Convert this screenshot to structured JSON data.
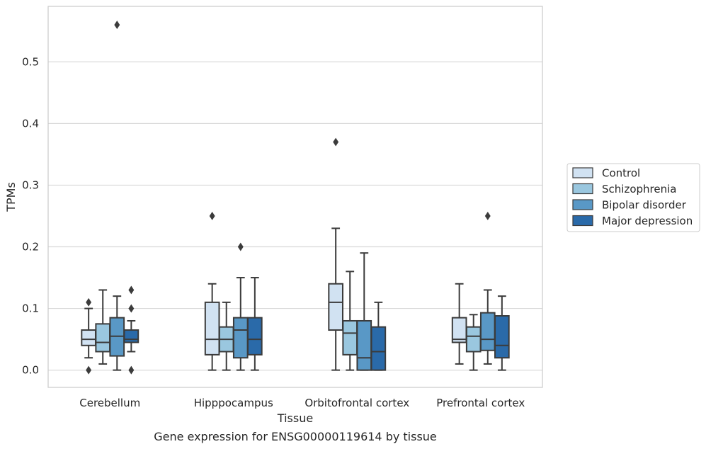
{
  "chart_data": {
    "type": "boxplot",
    "title": "",
    "xlabel": "Tissue",
    "ylabel": "TPMs",
    "caption": "Gene expression for ENSG00000119614 by tissue",
    "ylim": [
      -0.028,
      0.59
    ],
    "yticks": [
      "0.0",
      "0.1",
      "0.2",
      "0.3",
      "0.4",
      "0.5"
    ],
    "grid": "horizontal",
    "legend_position": "right",
    "categories": [
      "Cerebellum",
      "Hipppocampus",
      "Orbitofrontal cortex",
      "Prefrontal cortex"
    ],
    "series": [
      {
        "name": "Control",
        "color": "#d1e2f2",
        "boxes": [
          {
            "q1": 0.04,
            "median": 0.05,
            "q3": 0.065,
            "whisker_low": 0.02,
            "whisker_high": 0.1,
            "outliers": [
              0.11,
              0.0
            ]
          },
          {
            "q1": 0.025,
            "median": 0.05,
            "q3": 0.11,
            "whisker_low": 0.0,
            "whisker_high": 0.14,
            "outliers": [
              0.25
            ]
          },
          {
            "q1": 0.065,
            "median": 0.11,
            "q3": 0.14,
            "whisker_low": 0.0,
            "whisker_high": 0.23,
            "outliers": [
              0.37
            ]
          },
          {
            "q1": 0.045,
            "median": 0.05,
            "q3": 0.085,
            "whisker_low": 0.01,
            "whisker_high": 0.14,
            "outliers": []
          }
        ]
      },
      {
        "name": "Schizophrenia",
        "color": "#9ac7df",
        "boxes": [
          {
            "q1": 0.03,
            "median": 0.045,
            "q3": 0.075,
            "whisker_low": 0.01,
            "whisker_high": 0.13,
            "outliers": []
          },
          {
            "q1": 0.03,
            "median": 0.05,
            "q3": 0.07,
            "whisker_low": 0.0,
            "whisker_high": 0.11,
            "outliers": []
          },
          {
            "q1": 0.025,
            "median": 0.06,
            "q3": 0.08,
            "whisker_low": 0.0,
            "whisker_high": 0.16,
            "outliers": []
          },
          {
            "q1": 0.03,
            "median": 0.055,
            "q3": 0.07,
            "whisker_low": 0.0,
            "whisker_high": 0.09,
            "outliers": []
          }
        ]
      },
      {
        "name": "Bipolar disorder",
        "color": "#5998c6",
        "boxes": [
          {
            "q1": 0.023,
            "median": 0.055,
            "q3": 0.085,
            "whisker_low": 0.0,
            "whisker_high": 0.12,
            "outliers": [
              0.56
            ]
          },
          {
            "q1": 0.02,
            "median": 0.065,
            "q3": 0.085,
            "whisker_low": 0.0,
            "whisker_high": 0.15,
            "outliers": [
              0.2
            ]
          },
          {
            "q1": 0.0,
            "median": 0.02,
            "q3": 0.08,
            "whisker_low": 0.0,
            "whisker_high": 0.19,
            "outliers": []
          },
          {
            "q1": 0.032,
            "median": 0.05,
            "q3": 0.093,
            "whisker_low": 0.01,
            "whisker_high": 0.13,
            "outliers": [
              0.25
            ]
          }
        ]
      },
      {
        "name": "Major depression",
        "color": "#2a6aa9",
        "boxes": [
          {
            "q1": 0.045,
            "median": 0.05,
            "q3": 0.065,
            "whisker_low": 0.03,
            "whisker_high": 0.08,
            "outliers": [
              0.13,
              0.1,
              0.0
            ]
          },
          {
            "q1": 0.025,
            "median": 0.05,
            "q3": 0.085,
            "whisker_low": 0.0,
            "whisker_high": 0.15,
            "outliers": []
          },
          {
            "q1": 0.0,
            "median": 0.03,
            "q3": 0.07,
            "whisker_low": 0.0,
            "whisker_high": 0.11,
            "outliers": []
          },
          {
            "q1": 0.02,
            "median": 0.04,
            "q3": 0.088,
            "whisker_low": 0.0,
            "whisker_high": 0.12,
            "outliers": []
          }
        ]
      }
    ]
  }
}
